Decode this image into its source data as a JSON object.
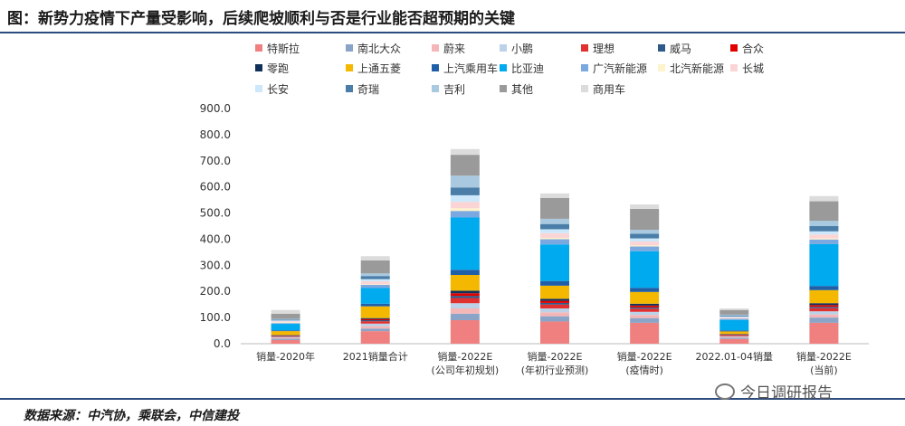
{
  "title": "图：新势力疫情下产量受影响，后续爬坡顺利与否是行业能否超预期的关键",
  "source": "数据来源：中汽协，乘联会，中信建投",
  "watermark": "今日调研报告",
  "chart_data": {
    "type": "bar",
    "stacked": true,
    "categories": [
      [
        "销量-2020年"
      ],
      [
        "2021销量合计"
      ],
      [
        "销量-2022E",
        "(公司年初规划)"
      ],
      [
        "销量-2022E",
        "(年初行业预测)"
      ],
      [
        "销量-2022E",
        "(疫情时)"
      ],
      [
        "2022.01-04销量"
      ],
      [
        "销量-2022E",
        "(当前)"
      ]
    ],
    "ylim": [
      0,
      900
    ],
    "yticks": [
      "0.0",
      "100.0",
      "200.0",
      "300.0",
      "400.0",
      "500.0",
      "600.0",
      "700.0",
      "800.0",
      "900.0"
    ],
    "legend_position": "top",
    "series": [
      {
        "name": "特斯拉",
        "color": "#f08080",
        "values": [
          14,
          48,
          90,
          85,
          80,
          18,
          80
        ]
      },
      {
        "name": "南北大众",
        "color": "#8aa4c8",
        "values": [
          5,
          10,
          25,
          20,
          18,
          5,
          20
        ]
      },
      {
        "name": "蔚来",
        "color": "#f4b6b6",
        "values": [
          4,
          9,
          20,
          15,
          12,
          3,
          12
        ]
      },
      {
        "name": "小鹏",
        "color": "#bcd2e8",
        "values": [
          3,
          10,
          20,
          15,
          12,
          3,
          12
        ]
      },
      {
        "name": "理想",
        "color": "#e03030",
        "values": [
          3,
          9,
          20,
          15,
          12,
          3,
          12
        ]
      },
      {
        "name": "威马",
        "color": "#2e5a8a",
        "values": [
          2,
          4,
          8,
          6,
          5,
          1,
          5
        ]
      },
      {
        "name": "合众",
        "color": "#e00000",
        "values": [
          1,
          4,
          10,
          8,
          7,
          2,
          7
        ]
      },
      {
        "name": "零跑",
        "color": "#10305a",
        "values": [
          1,
          4,
          10,
          8,
          7,
          2,
          7
        ]
      },
      {
        "name": "上通五菱",
        "color": "#f5b800",
        "values": [
          15,
          45,
          60,
          50,
          45,
          10,
          50
        ]
      },
      {
        "name": "上汽乘用车",
        "color": "#1f5fa8",
        "values": [
          3,
          10,
          20,
          18,
          16,
          4,
          16
        ]
      },
      {
        "name": "比亚迪",
        "color": "#00aaee",
        "values": [
          25,
          60,
          200,
          140,
          140,
          40,
          160
        ]
      },
      {
        "name": "广汽新能源",
        "color": "#7aa8e0",
        "values": [
          3,
          12,
          25,
          20,
          18,
          5,
          18
        ]
      },
      {
        "name": "北汽新能源",
        "color": "#fff3cc",
        "values": [
          3,
          2,
          10,
          5,
          4,
          1,
          4
        ]
      },
      {
        "name": "长城",
        "color": "#fbd5d5",
        "values": [
          4,
          12,
          25,
          18,
          15,
          4,
          15
        ]
      },
      {
        "name": "长安",
        "color": "#cde8fb",
        "values": [
          3,
          8,
          25,
          15,
          12,
          3,
          12
        ]
      },
      {
        "name": "奇瑞",
        "color": "#4a7ea8",
        "values": [
          3,
          12,
          30,
          20,
          18,
          4,
          20
        ]
      },
      {
        "name": "吉利",
        "color": "#a9c9e0",
        "values": [
          3,
          10,
          45,
          20,
          15,
          3,
          20
        ]
      },
      {
        "name": "其他",
        "color": "#9a9a9a",
        "values": [
          20,
          50,
          80,
          80,
          80,
          18,
          75
        ]
      },
      {
        "name": "商用车",
        "color": "#dcdcdc",
        "values": [
          14,
          16,
          22,
          17,
          17,
          6,
          20
        ]
      }
    ]
  }
}
